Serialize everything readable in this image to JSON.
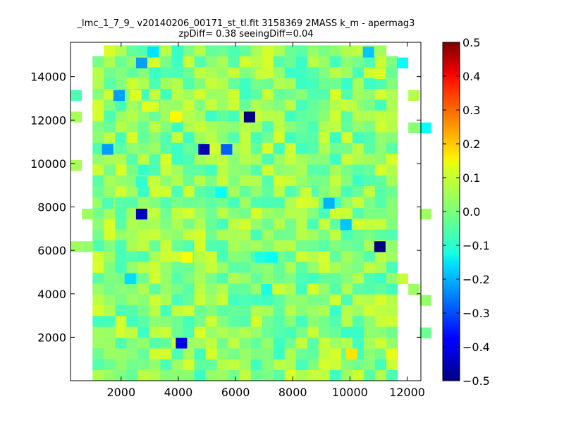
{
  "chart_data": {
    "type": "heatmap",
    "title_line1": "_lmc_1_7_9_ v20140206_00171_st_tl.fit 3158369 2MASS k_m - apermag3",
    "title_line2": "zpDiff= 0.38 seeingDiff=0.04",
    "xlabel": "",
    "ylabel": "",
    "xlim": [
      230,
      12480
    ],
    "ylim": [
      0,
      15580
    ],
    "xticks": [
      2000,
      4000,
      6000,
      8000,
      10000,
      12000
    ],
    "yticks": [
      2000,
      4000,
      6000,
      8000,
      10000,
      12000,
      14000
    ],
    "xtick_labels": [
      "2000",
      "4000",
      "6000",
      "8000",
      "10000",
      "12000"
    ],
    "ytick_labels": [
      "2000",
      "4000",
      "6000",
      "8000",
      "10000",
      "12000",
      "14000"
    ],
    "colormap": "jet",
    "color_range": [
      -0.5,
      0.5
    ],
    "colorbar_ticks": [
      0.5,
      0.4,
      0.3,
      0.2,
      0.1,
      0.0,
      -0.1,
      -0.2,
      -0.3,
      -0.4,
      -0.5
    ],
    "colorbar_tick_labels": [
      "0.5",
      "0.4",
      "0.3",
      "0.2",
      "0.1",
      "0.0",
      "−0.1",
      "−0.2",
      "−0.3",
      "−0.4",
      "−0.5"
    ],
    "grid": false,
    "bin_width": 395,
    "bin_height": 498,
    "x_start": 230,
    "nx": 31,
    "ny": 31,
    "rows_bottom_to_top": [
      "..................................................................",
      "......PPPPPPPPPPPPPPPPPPPPPPPPPPP......",
      ".....XXXXXXXXXXXXXXXXXXXXXXXXXXXXX.....",
      ".....XXXXXXXXXXXXXXXXXXXXXXXXXXXXX.....",
      ".....XXXXXXXXXXXXXXXXXXXXXXXXXXXXX.....",
      ".....XXXXXXXXXXXXXXXXXXXXXXXXXXXXX....."
    ],
    "base_value": 0.0,
    "cells": [
      {
        "x": 2520,
        "y": 7670,
        "v": -0.45
      },
      {
        "x": 3910,
        "y": 1730,
        "v": -0.4
      },
      {
        "x": 4700,
        "y": 10650,
        "v": -0.45
      },
      {
        "x": 6290,
        "y": 12140,
        "v": -0.5
      },
      {
        "x": 10850,
        "y": 6170,
        "v": -0.5
      },
      {
        "x": 5490,
        "y": 10650,
        "v": -0.28
      },
      {
        "x": 2520,
        "y": 14630,
        "v": -0.22
      },
      {
        "x": 1730,
        "y": 13130,
        "v": -0.22
      },
      {
        "x": 1330,
        "y": 10650,
        "v": -0.22
      },
      {
        "x": 10450,
        "y": 15130,
        "v": -0.18
      },
      {
        "x": 9070,
        "y": 8170,
        "v": -0.2
      },
      {
        "x": 9660,
        "y": 7180,
        "v": -0.18
      },
      {
        "x": 2120,
        "y": 4690,
        "v": -0.16
      },
      {
        "x": 2920,
        "y": 15130,
        "v": -0.15
      },
      {
        "x": 11640,
        "y": 14630,
        "v": -0.12
      },
      {
        "x": 12440,
        "y": 11640,
        "v": -0.12
      },
      {
        "x": 5290,
        "y": 8660,
        "v": -0.12
      },
      {
        "x": 7080,
        "y": 5680,
        "v": -0.12
      },
      {
        "x": 6690,
        "y": 5680,
        "v": -0.1
      },
      {
        "x": 6890,
        "y": 4200,
        "v": -0.1
      },
      {
        "x": 2520,
        "y": 9160,
        "v": -0.08
      },
      {
        "x": 1330,
        "y": 8160,
        "v": -0.05
      },
      {
        "x": 2720,
        "y": 12630,
        "v": 0.1
      },
      {
        "x": 2920,
        "y": 12630,
        "v": 0.09
      },
      {
        "x": 3710,
        "y": 12140,
        "v": 0.13
      },
      {
        "x": 2320,
        "y": 13140,
        "v": 0.09
      },
      {
        "x": 4110,
        "y": 5680,
        "v": 0.12
      },
      {
        "x": 9860,
        "y": 1230,
        "v": 0.15
      },
      {
        "x": 11250,
        "y": 1230,
        "v": 0.1
      },
      {
        "x": 10850,
        "y": 14140,
        "v": 0.09
      },
      {
        "x": 8270,
        "y": 8660,
        "v": 0.07
      },
      {
        "x": 6690,
        "y": 14130,
        "v": 0.07
      },
      {
        "x": 11640,
        "y": 4690,
        "v": 0.07
      },
      {
        "x": 2120,
        "y": 2200,
        "v": 0.06
      },
      {
        "x": 9860,
        "y": 12640,
        "v": 0.06
      },
      {
        "x": 230,
        "y": 12140,
        "v": 0.04
      },
      {
        "x": 230,
        "y": 9910,
        "v": 0.04
      },
      {
        "x": 630,
        "y": 7670,
        "v": 0.03
      },
      {
        "x": 230,
        "y": 6170,
        "v": 0.03
      },
      {
        "x": 630,
        "y": 6170,
        "v": 0.02
      },
      {
        "x": 230,
        "y": 13130,
        "v": -0.05
      },
      {
        "x": 12440,
        "y": 7670,
        "v": 0.03
      },
      {
        "x": 12440,
        "y": 3700,
        "v": 0.02
      },
      {
        "x": 12440,
        "y": 2200,
        "v": -0.02
      },
      {
        "x": 12040,
        "y": 13130,
        "v": 0.05
      },
      {
        "x": 12040,
        "y": 11640,
        "v": 0.01
      },
      {
        "x": 12040,
        "y": 4200,
        "v": 0.03
      }
    ]
  }
}
